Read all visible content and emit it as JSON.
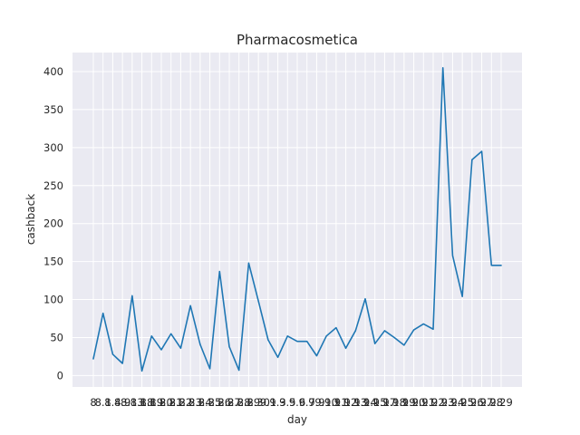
{
  "chart_data": {
    "type": "line",
    "title": "Pharmacosmetica",
    "xlabel": "day",
    "ylabel": "cashback",
    "x": [
      "8",
      "8.1",
      "8.4",
      "8.9",
      "8.13",
      "8.18",
      "8.19",
      "8.20",
      "8.21",
      "8.22",
      "8.23",
      "8.24",
      "8.25",
      "8.26",
      "8.27",
      "8.28",
      "8.29",
      "8.30",
      "9.1",
      "9.3",
      "9.5",
      "9.6",
      "9.7",
      "9.9",
      "9.10",
      "9.11",
      "9.12",
      "9.13",
      "9.14",
      "9.15",
      "9.17",
      "9.18",
      "9.19",
      "9.20",
      "9.21",
      "9.22",
      "9.23",
      "9.24",
      "9.25",
      "9.26",
      "9.27",
      "9.28",
      "9.29"
    ],
    "x_tick_labels": [
      "8",
      "8.1",
      "8.4",
      "8.9",
      "8.13",
      "8.18",
      "8.19",
      "8.20",
      "8.21",
      "8.22",
      "8.23",
      "8.24",
      "8.25",
      "8.26",
      "8.27",
      "8.28",
      "8.29",
      "8.30",
      "9.1",
      "9.3",
      "9.5",
      "9.6",
      "9.7",
      "9.9",
      "9.10",
      "9.11",
      "9.12",
      "9.13",
      "9.14",
      "9.15",
      "9.17",
      "9.18",
      "9.19",
      "9.20",
      "9.21",
      "9.22",
      "9.23",
      "9.24",
      "9.25",
      "9.26",
      "9.27",
      "9.28",
      "9.29"
    ],
    "series": [
      {
        "values": [
          22,
          82,
          28,
          16,
          105,
          6,
          52,
          34,
          55,
          36,
          92,
          41,
          9,
          137,
          38,
          7,
          148,
          98,
          47,
          24,
          52,
          45,
          45,
          26,
          52,
          63,
          36,
          59,
          101,
          42,
          59,
          50,
          40,
          60,
          68,
          61,
          405,
          158,
          104,
          284,
          295,
          145,
          145
        ],
        "color": "#1f77b4"
      }
    ],
    "ylim": [
      -15,
      425
    ],
    "yticks": [
      0,
      50,
      100,
      150,
      200,
      250,
      300,
      350,
      400
    ],
    "grid": true,
    "legend": "none",
    "colors": {
      "plot_background": "#eaeaf2",
      "grid": "#ffffff",
      "line": "#1f77b4"
    }
  }
}
